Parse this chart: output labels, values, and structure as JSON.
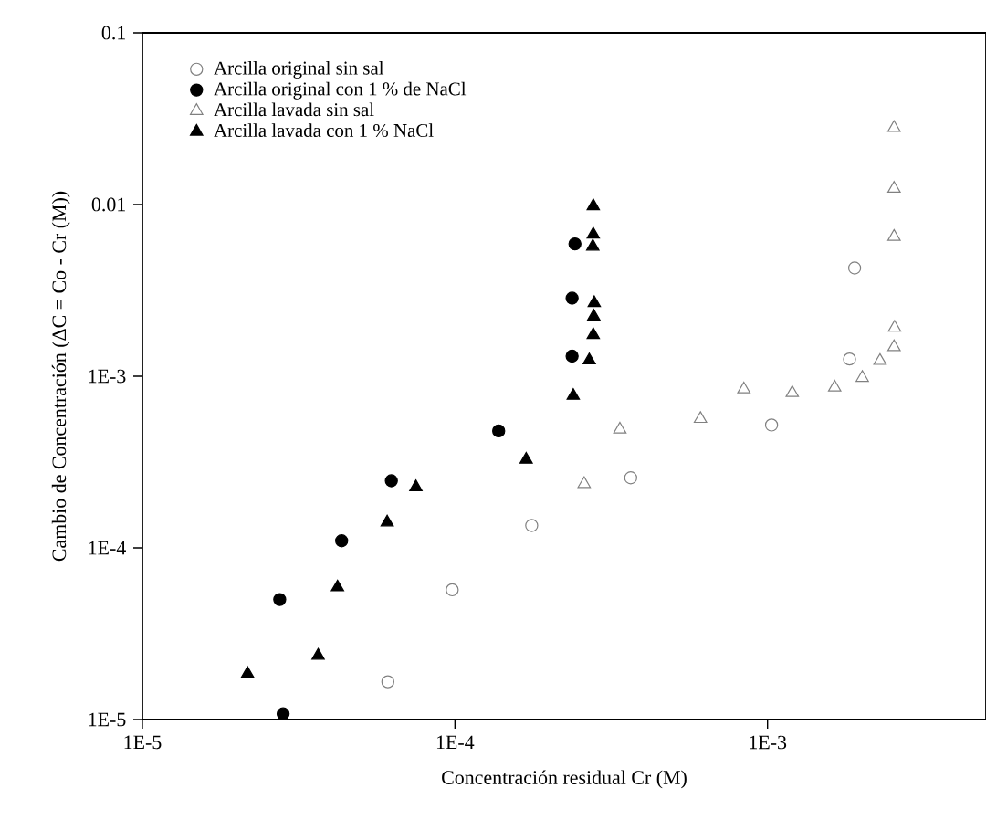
{
  "chart_data": {
    "type": "scatter",
    "xlabel": "Concentración residual Cr (M)",
    "ylabel": "Cambio de Concentración (ΔC = Co - Cr (M))",
    "log": "xy",
    "xlim": [
      1e-05,
      0.005
    ],
    "ylim": [
      1e-05,
      0.1
    ],
    "xticks": [
      {
        "value": 1e-05,
        "label": "1E-5"
      },
      {
        "value": 0.0001,
        "label": "1E-4"
      },
      {
        "value": 0.001,
        "label": "1E-3"
      }
    ],
    "yticks": [
      {
        "value": 1e-05,
        "label": "1E-5"
      },
      {
        "value": 0.0001,
        "label": "1E-4"
      },
      {
        "value": 0.001,
        "label": "1E-3"
      },
      0.01,
      0.1
    ],
    "grid": false,
    "legend": "top left",
    "series": [
      {
        "name": "Arcilla original sin sal",
        "marker": "circle",
        "color": "#808080",
        "x": [
          0.0019,
          0.00183,
          0.00103,
          0.000365,
          0.000176,
          9.8e-05,
          6.1e-05
        ],
        "values": [
          0.00427,
          0.00126,
          0.00052,
          0.000256,
          0.000135,
          5.7e-05,
          1.66e-05
        ]
      },
      {
        "name": "Arcilla original con 1 % de NaCl",
        "marker": "circle",
        "color": "#000000",
        "x": [
          0.000242,
          0.000237,
          0.000237,
          0.000138,
          6.26e-05,
          4.34e-05,
          2.75e-05,
          2.82e-05
        ],
        "values": [
          0.0059,
          0.00285,
          0.00131,
          0.00048,
          0.000246,
          0.00011,
          5e-05,
          1.08e-05
        ]
      },
      {
        "name": "Arcilla lavada sin sal",
        "marker": "triangle",
        "color": "#808080",
        "x": [
          0.00254,
          0.00254,
          0.00254,
          0.00255,
          0.00254,
          0.00229,
          0.00201,
          0.00164,
          0.0012,
          0.00084,
          0.00061,
          0.000337,
          0.000259
        ],
        "values": [
          0.028,
          0.0124,
          0.0065,
          0.00192,
          0.00148,
          0.00123,
          0.00098,
          0.00086,
          0.0008,
          0.00084,
          0.000565,
          0.00049,
          0.000236
        ]
      },
      {
        "name": "Arcilla lavada con 1 % NaCl",
        "marker": "triangle",
        "color": "#000000",
        "x": [
          0.000277,
          0.000277,
          0.000276,
          0.000279,
          0.000278,
          0.000277,
          0.000269,
          0.000239,
          0.000169,
          7.5e-05,
          6.07e-05,
          4.21e-05,
          3.65e-05,
          2.17e-05
        ],
        "values": [
          0.0098,
          0.0067,
          0.0057,
          0.00267,
          0.00223,
          0.00174,
          0.00124,
          0.00077,
          0.000327,
          0.000226,
          0.000141,
          5.9e-05,
          2.36e-05,
          1.85e-05
        ]
      }
    ]
  }
}
